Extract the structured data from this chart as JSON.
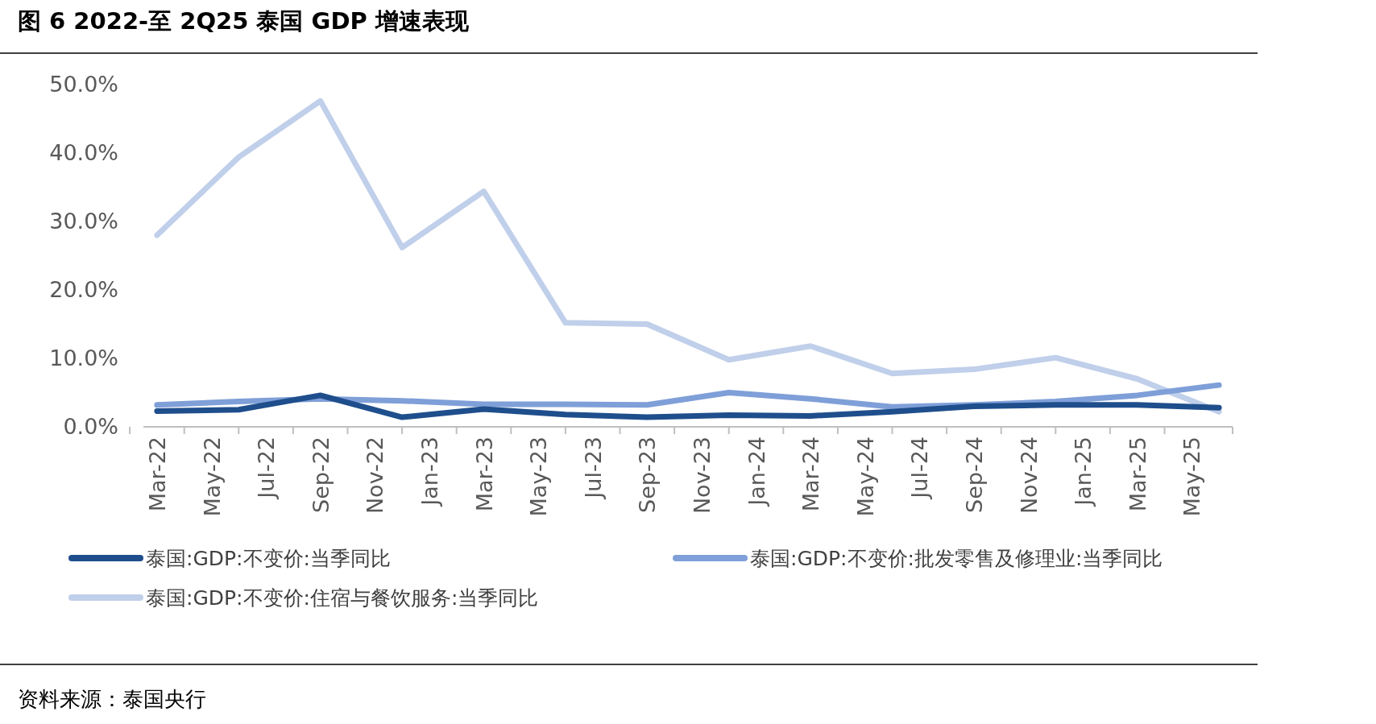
{
  "chart_data": {
    "type": "line",
    "title": "图 6  2022-至 2Q25 泰国 GDP 增速表现",
    "x": [
      "2022-03",
      "2022-06",
      "2022-09",
      "2022-12",
      "2023-03",
      "2023-06",
      "2023-09",
      "2023-12",
      "2024-03",
      "2024-06",
      "2024-09",
      "2024-12",
      "2025-03",
      "2025-06"
    ],
    "xlim": [
      "2022-02-15",
      "2025-06-16"
    ],
    "xticks": [
      {
        "value": "2022-03",
        "label": "Mar-22"
      },
      {
        "value": "2022-05",
        "label": "May-22"
      },
      {
        "value": "2022-07",
        "label": "Jul-22"
      },
      {
        "value": "2022-09",
        "label": "Sep-22"
      },
      {
        "value": "2022-11",
        "label": "Nov-22"
      },
      {
        "value": "2023-01",
        "label": "Jan-23"
      },
      {
        "value": "2023-03",
        "label": "Mar-23"
      },
      {
        "value": "2023-05",
        "label": "May-23"
      },
      {
        "value": "2023-07",
        "label": "Jul-23"
      },
      {
        "value": "2023-09",
        "label": "Sep-23"
      },
      {
        "value": "2023-11",
        "label": "Nov-23"
      },
      {
        "value": "2024-01",
        "label": "Jan-24"
      },
      {
        "value": "2024-03",
        "label": "Mar-24"
      },
      {
        "value": "2024-05",
        "label": "May-24"
      },
      {
        "value": "2024-07",
        "label": "Jul-24"
      },
      {
        "value": "2024-09",
        "label": "Sep-24"
      },
      {
        "value": "2024-11",
        "label": "Nov-24"
      },
      {
        "value": "2025-01",
        "label": "Jan-25"
      },
      {
        "value": "2025-03",
        "label": "Mar-25"
      },
      {
        "value": "2025-05",
        "label": "May-25"
      }
    ],
    "ylim": [
      0,
      50
    ],
    "yticks": [
      {
        "value": 0,
        "label": "0.0%"
      },
      {
        "value": 10,
        "label": "10.0%"
      },
      {
        "value": 20,
        "label": "20.0%"
      },
      {
        "value": 30,
        "label": "30.0%"
      },
      {
        "value": 40,
        "label": "40.0%"
      },
      {
        "value": 50,
        "label": "50.0%"
      }
    ],
    "grid": false,
    "legend": "bottom",
    "marker": "none",
    "line_style": "solid",
    "series": [
      {
        "name": "泰国:GDP:不变价:当季同比",
        "color": "#1f4e8c",
        "values": [
          2.3,
          2.5,
          4.6,
          1.4,
          2.6,
          1.8,
          1.4,
          1.7,
          1.6,
          2.2,
          3.0,
          3.2,
          3.2,
          2.8
        ]
      },
      {
        "name": "泰国:GDP:不变价:批发零售及修理业:当季同比",
        "color": "#7f9fd8",
        "values": [
          3.2,
          3.7,
          4.1,
          3.8,
          3.3,
          3.3,
          3.2,
          5.0,
          4.1,
          2.9,
          3.2,
          3.7,
          4.6,
          6.1
        ]
      },
      {
        "name": "泰国:GDP:不变价:住宿与餐饮服务:当季同比",
        "color": "#c0cfea",
        "values": [
          28.0,
          39.4,
          47.6,
          26.2,
          34.4,
          15.2,
          15.0,
          9.8,
          11.8,
          7.8,
          8.4,
          10.1,
          7.0,
          2.2
        ]
      }
    ],
    "annotations": [
      "资料来源：泰国央行"
    ]
  }
}
